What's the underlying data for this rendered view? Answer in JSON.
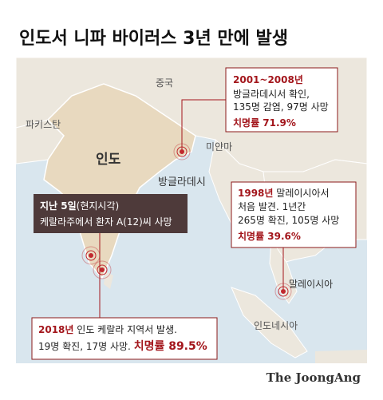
{
  "header": {
    "title": "인도서 니파 바이러스 3년 만에 발생"
  },
  "map_labels": {
    "china": "중국",
    "pakistan": "파키스탄",
    "india": "인도",
    "myanmar": "미얀마",
    "bangladesh": "방글라데시",
    "malaysia": "말레이시아",
    "indonesia": "인도네시아"
  },
  "callouts": {
    "bangladesh": {
      "year": "2001~2008년",
      "line1": "방글라데시서 확인,",
      "line2": "135명 감염, 97명 사망",
      "fatality": "치명률 71.9%"
    },
    "malaysia": {
      "year": "1998년",
      "line1_rest": "말레이시아서",
      "line2": "처음 발견. 1년간",
      "line3": "265명 확진, 105명 사망",
      "fatality": "치명률 39.6%"
    },
    "recent": {
      "date": "지난 5일",
      "date_note": "(현지시각)",
      "line2": "케랄라주에서 환자 A(12)씨 사망"
    },
    "kerala": {
      "year": "2018년",
      "line1_rest": "인도 케랄라 지역서 발생.",
      "line2": "19명 확진, 17명 사망.",
      "fatality": "치명률 89.5%"
    }
  },
  "footer": {
    "credit": "The JoongAng"
  }
}
